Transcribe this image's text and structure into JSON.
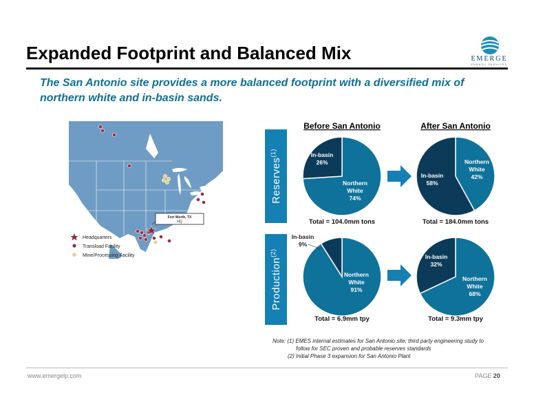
{
  "header": {
    "title": "Expanded Footprint and Balanced Mix",
    "subtitle": "The San Antonio site provides a more balanced footprint with a diversified mix of northern white and in-basin sands."
  },
  "logo": {
    "word": "EMERGE",
    "tagline": "ENERGY SERVICES",
    "icon": "globe-icon"
  },
  "map": {
    "hq_callout_line1": "Fort Worth, TX",
    "hq_callout_line2": "HQ",
    "legend": [
      {
        "label": "Headquarters",
        "icon": "star-icon",
        "color": "#8b2a3a"
      },
      {
        "label": "Transload Facility",
        "icon": "dot-icon",
        "color": "#9b2c44"
      },
      {
        "label": "Mine/Processing Facility",
        "icon": "dot-icon",
        "color": "#e6d28a"
      }
    ],
    "colors": {
      "ocean": "#ffffff",
      "land": "#6f9cc4",
      "border": "#ffffff"
    }
  },
  "side_labels": {
    "reserves": "Reserves",
    "reserves_note": "(1)",
    "production": "Production",
    "production_note": "(2)"
  },
  "chart_data": [
    {
      "type": "pie",
      "group": "Reserves",
      "column_title": "Before San Antonio",
      "slices": [
        {
          "label": "Northern White",
          "value": 74,
          "display": "74%",
          "color": "#0f729a"
        },
        {
          "label": "In-basin",
          "value": 26,
          "display": "26%",
          "color": "#0c3b5a"
        }
      ],
      "total": "Total = 104.0mm tons"
    },
    {
      "type": "pie",
      "group": "Reserves",
      "column_title": "After San Antonio",
      "slices": [
        {
          "label": "Northern White",
          "value": 42,
          "display": "42%",
          "color": "#0f729a"
        },
        {
          "label": "In-basin",
          "value": 58,
          "display": "58%",
          "color": "#0c3b5a"
        }
      ],
      "total": "Total = 184.0mm tons"
    },
    {
      "type": "pie",
      "group": "Production",
      "column_title": "Before San Antonio",
      "slices": [
        {
          "label": "Northern White",
          "value": 91,
          "display": "91%",
          "color": "#0f729a"
        },
        {
          "label": "In-basin",
          "value": 9,
          "display": "9%",
          "color": "#0c3b5a"
        }
      ],
      "total": "Total = 6.9mm tpy"
    },
    {
      "type": "pie",
      "group": "Production",
      "column_title": "After San Antonio",
      "slices": [
        {
          "label": "Northern White",
          "value": 68,
          "display": "68%",
          "color": "#0f729a"
        },
        {
          "label": "In-basin",
          "value": 32,
          "display": "32%",
          "color": "#0c3b5a"
        }
      ],
      "total": "Total = 9.3mm tpy"
    }
  ],
  "column_titles": {
    "before": "Before San Antonio",
    "after": "After San Antonio"
  },
  "arrow_color": "#1580b3",
  "notes": {
    "line1": "Note: (1) EMES internal estimates for San Antonio site; third party engineering study to",
    "line2": "follow for SEC proven and probable reserves standards",
    "line3": "(2) Initial Phase 3 expansion for San Antonio Plant"
  },
  "footer": {
    "url": "www.emergelp.com",
    "page_label": "PAGE",
    "page_number": "20"
  }
}
